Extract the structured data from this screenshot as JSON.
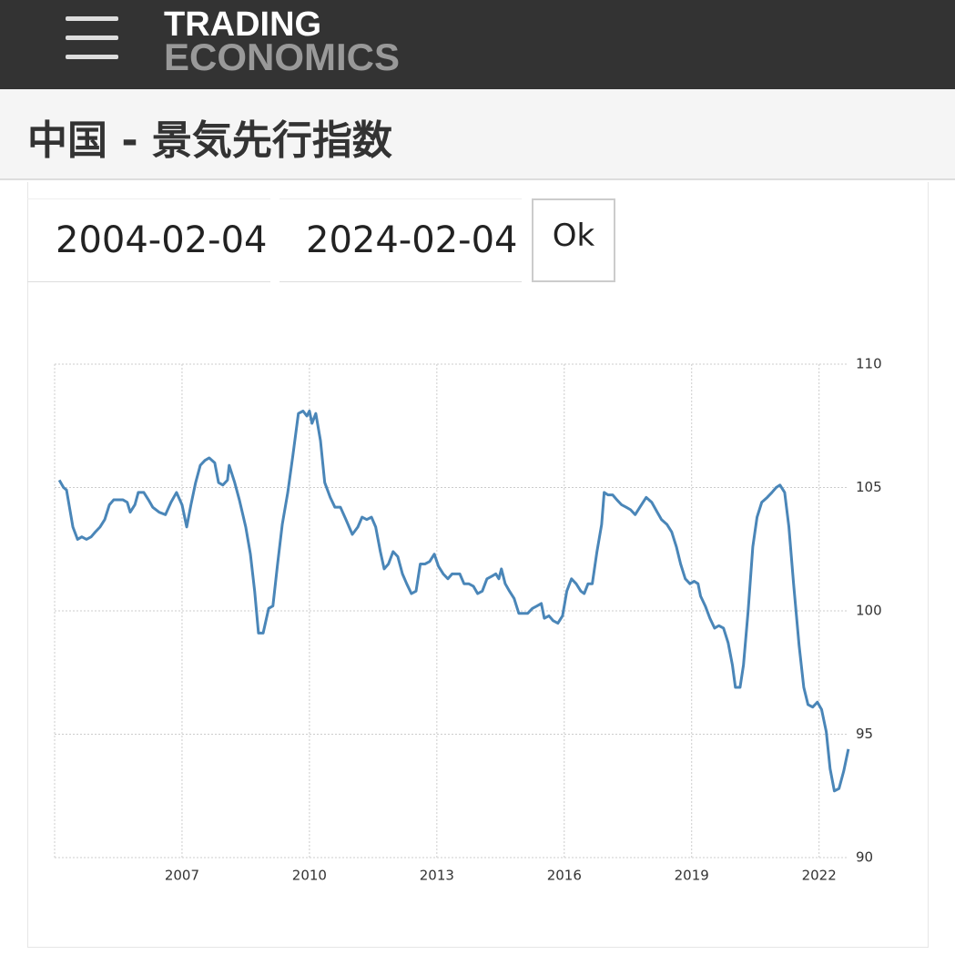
{
  "header": {
    "logo_top": "TRADING",
    "logo_bottom": "ECONOMICS",
    "title": "中国 - 景気先行指数"
  },
  "form": {
    "start_date": "2004-02-04",
    "end_date": "2024-02-04",
    "button": "Ok"
  },
  "chart_data": {
    "type": "line",
    "color": "#4a86b8",
    "grid": true,
    "xlim": [
      2004,
      2022.8
    ],
    "xticks": [
      2007,
      2010,
      2013,
      2016,
      2019,
      2022
    ],
    "ylim": [
      90,
      110
    ],
    "yticks": [
      110,
      105,
      100,
      95,
      90
    ],
    "x": [
      2004.11,
      2004.21,
      2004.28,
      2004.36,
      2004.43,
      2004.54,
      2004.64,
      2004.75,
      2004.86,
      2004.96,
      2005.07,
      2005.18,
      2005.29,
      2005.39,
      2005.61,
      2005.71,
      2005.78,
      2005.89,
      2005.97,
      2006.1,
      2006.21,
      2006.31,
      2006.46,
      2006.61,
      2006.74,
      2006.87,
      2007.0,
      2007.11,
      2007.21,
      2007.32,
      2007.43,
      2007.54,
      2007.64,
      2007.77,
      2007.86,
      2007.96,
      2008.07,
      2008.11,
      2008.24,
      2008.35,
      2008.5,
      2008.61,
      2008.71,
      2008.8,
      2008.91,
      2009.04,
      2009.14,
      2009.25,
      2009.36,
      2009.49,
      2009.61,
      2009.74,
      2009.85,
      2009.94,
      2010.0,
      2010.06,
      2010.15,
      2010.26,
      2010.36,
      2010.49,
      2010.6,
      2010.73,
      2010.86,
      2011.01,
      2011.14,
      2011.24,
      2011.35,
      2011.46,
      2011.56,
      2011.67,
      2011.76,
      2011.86,
      2011.97,
      2012.08,
      2012.19,
      2012.29,
      2012.4,
      2012.51,
      2012.61,
      2012.72,
      2012.83,
      2012.94,
      2013.04,
      2013.15,
      2013.26,
      2013.36,
      2013.54,
      2013.64,
      2013.75,
      2013.86,
      2013.96,
      2014.07,
      2014.18,
      2014.29,
      2014.39,
      2014.46,
      2014.52,
      2014.61,
      2014.71,
      2014.82,
      2014.93,
      2015.04,
      2015.14,
      2015.25,
      2015.36,
      2015.46,
      2015.53,
      2015.64,
      2015.74,
      2015.85,
      2015.96,
      2016.06,
      2016.17,
      2016.28,
      2016.39,
      2016.47,
      2016.56,
      2016.66,
      2016.77,
      2016.88,
      2016.94,
      2017.03,
      2017.14,
      2017.24,
      2017.35,
      2017.46,
      2017.56,
      2017.67,
      2017.78,
      2017.93,
      2018.06,
      2018.19,
      2018.29,
      2018.42,
      2018.53,
      2018.64,
      2018.74,
      2018.85,
      2018.96,
      2019.06,
      2019.15,
      2019.21,
      2019.32,
      2019.43,
      2019.54,
      2019.64,
      2019.75,
      2019.86,
      2019.96,
      2020.03,
      2020.14,
      2020.22,
      2020.33,
      2020.44,
      2020.54,
      2020.65,
      2020.78,
      2020.89,
      2020.99,
      2021.08,
      2021.19,
      2021.29,
      2021.4,
      2021.53,
      2021.64,
      2021.74,
      2021.85,
      2021.96,
      2022.06,
      2022.17,
      2022.26,
      2022.36,
      2022.47,
      2022.58,
      2022.69
    ],
    "values": [
      105.3,
      105.0,
      104.9,
      104.1,
      103.4,
      102.9,
      103.0,
      102.9,
      103.0,
      103.2,
      103.4,
      103.7,
      104.3,
      104.5,
      104.5,
      104.4,
      104.0,
      104.3,
      104.8,
      104.8,
      104.5,
      104.2,
      104.0,
      103.9,
      104.4,
      104.8,
      104.3,
      103.4,
      104.3,
      105.2,
      105.9,
      106.1,
      106.2,
      106.0,
      105.2,
      105.1,
      105.3,
      105.9,
      105.2,
      104.5,
      103.4,
      102.3,
      100.8,
      99.1,
      99.1,
      100.1,
      100.2,
      101.9,
      103.5,
      104.8,
      106.3,
      108.0,
      108.1,
      107.9,
      108.1,
      107.6,
      108.0,
      106.9,
      105.2,
      104.6,
      104.2,
      104.2,
      103.7,
      103.1,
      103.4,
      103.8,
      103.7,
      103.8,
      103.4,
      102.4,
      101.7,
      101.9,
      102.4,
      102.2,
      101.5,
      101.1,
      100.7,
      100.8,
      101.9,
      101.9,
      102.0,
      102.3,
      101.8,
      101.5,
      101.3,
      101.5,
      101.5,
      101.1,
      101.1,
      101.0,
      100.7,
      100.8,
      101.3,
      101.4,
      101.5,
      101.3,
      101.7,
      101.1,
      100.8,
      100.5,
      99.9,
      99.9,
      99.9,
      100.1,
      100.2,
      100.3,
      99.7,
      99.8,
      99.6,
      99.5,
      99.8,
      100.8,
      101.3,
      101.1,
      100.8,
      100.7,
      101.1,
      101.1,
      102.4,
      103.5,
      104.8,
      104.7,
      104.7,
      104.5,
      104.3,
      104.2,
      104.1,
      103.9,
      104.2,
      104.6,
      104.4,
      104.0,
      103.7,
      103.5,
      103.2,
      102.6,
      101.9,
      101.3,
      101.1,
      101.2,
      101.1,
      100.6,
      100.2,
      99.7,
      99.3,
      99.4,
      99.3,
      98.7,
      97.8,
      96.9,
      96.9,
      97.8,
      100.0,
      102.6,
      103.8,
      104.4,
      104.6,
      104.8,
      105.0,
      105.1,
      104.8,
      103.4,
      101.1,
      98.6,
      96.9,
      96.2,
      96.1,
      96.3,
      96.0,
      95.1,
      93.6,
      92.7,
      92.8,
      93.5,
      94.4
    ]
  }
}
